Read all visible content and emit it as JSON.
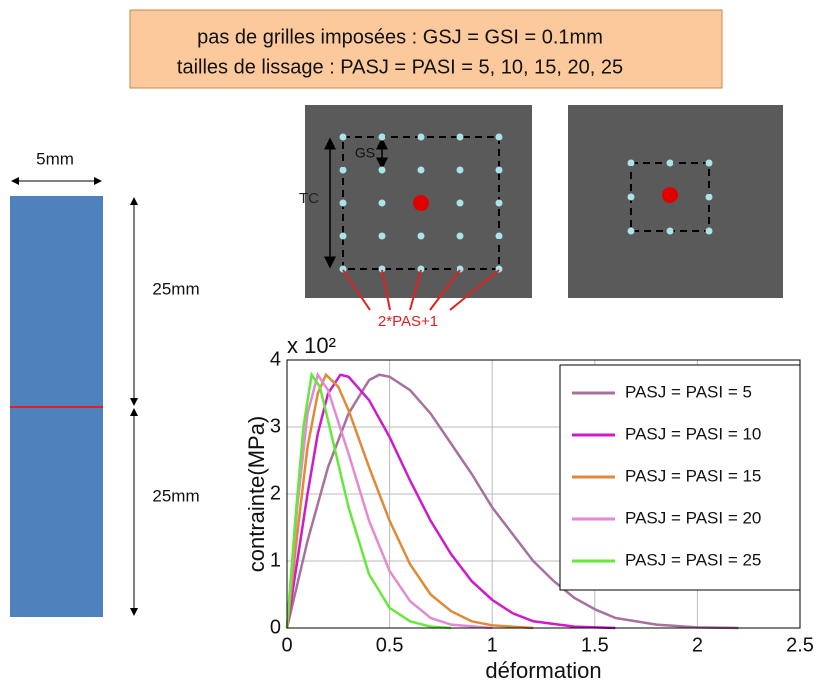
{
  "header": {
    "lines": [
      "pas de grilles imposées : GSJ = GSI = 0.1mm",
      "tailles de lissage : PASJ = PASI = 5, 10, 15, 20, 25"
    ]
  },
  "diagram": {
    "width_label": "5mm",
    "length_labels": [
      "25mm",
      "25mm"
    ],
    "gs_label": "GS",
    "tc_label": "TC",
    "pas_label": "2*PAS+1"
  },
  "chart_data": {
    "type": "line",
    "x_label": "déformation",
    "y_label": "contrainte(MPa)",
    "y_multiplier": "x 10²",
    "xlim": [
      0,
      2.5
    ],
    "ylim": [
      0,
      4
    ],
    "xticks": [
      0,
      0.5,
      1,
      1.5,
      2,
      2.5
    ],
    "yticks": [
      0,
      1,
      2,
      3,
      4
    ],
    "grid": true,
    "legend": "upper right",
    "series": [
      {
        "name": "PASJ = PASI = 5",
        "color": "#a8709c",
        "x": [
          0,
          0.1,
          0.2,
          0.3,
          0.4,
          0.45,
          0.5,
          0.6,
          0.7,
          0.8,
          0.9,
          1.0,
          1.1,
          1.2,
          1.3,
          1.4,
          1.5,
          1.6,
          1.8,
          2.0,
          2.2
        ],
        "values": [
          0,
          1.3,
          2.4,
          3.2,
          3.7,
          3.78,
          3.75,
          3.55,
          3.2,
          2.75,
          2.3,
          1.8,
          1.4,
          1.0,
          0.7,
          0.45,
          0.28,
          0.15,
          0.05,
          0.01,
          0
        ]
      },
      {
        "name": "PASJ = PASI = 10",
        "color": "#cc1ccc",
        "x": [
          0,
          0.05,
          0.1,
          0.15,
          0.2,
          0.26,
          0.3,
          0.4,
          0.5,
          0.6,
          0.7,
          0.8,
          0.9,
          1.0,
          1.1,
          1.2,
          1.4,
          1.6
        ],
        "values": [
          0,
          1.0,
          2.0,
          2.9,
          3.5,
          3.78,
          3.75,
          3.4,
          2.85,
          2.2,
          1.6,
          1.1,
          0.7,
          0.42,
          0.22,
          0.1,
          0.02,
          0
        ]
      },
      {
        "name": "PASJ = PASI = 15",
        "color": "#e08a38",
        "x": [
          0,
          0.05,
          0.1,
          0.15,
          0.19,
          0.25,
          0.3,
          0.4,
          0.5,
          0.6,
          0.7,
          0.8,
          0.9,
          1.0,
          1.2
        ],
        "values": [
          0,
          1.4,
          2.7,
          3.5,
          3.78,
          3.6,
          3.25,
          2.4,
          1.6,
          0.95,
          0.5,
          0.25,
          0.1,
          0.04,
          0
        ]
      },
      {
        "name": "PASJ = PASI = 20",
        "color": "#e28ad2",
        "x": [
          0,
          0.05,
          0.1,
          0.15,
          0.2,
          0.3,
          0.4,
          0.5,
          0.6,
          0.7,
          0.8,
          1.0
        ],
        "values": [
          0,
          1.8,
          3.2,
          3.78,
          3.55,
          2.6,
          1.6,
          0.85,
          0.4,
          0.15,
          0.05,
          0
        ]
      },
      {
        "name": "PASJ = PASI = 25",
        "color": "#66e83a",
        "x": [
          0,
          0.04,
          0.08,
          0.12,
          0.16,
          0.2,
          0.3,
          0.4,
          0.5,
          0.6,
          0.7,
          0.8
        ],
        "values": [
          0,
          1.6,
          3.0,
          3.78,
          3.6,
          3.1,
          1.8,
          0.8,
          0.3,
          0.1,
          0.02,
          0
        ]
      }
    ]
  }
}
